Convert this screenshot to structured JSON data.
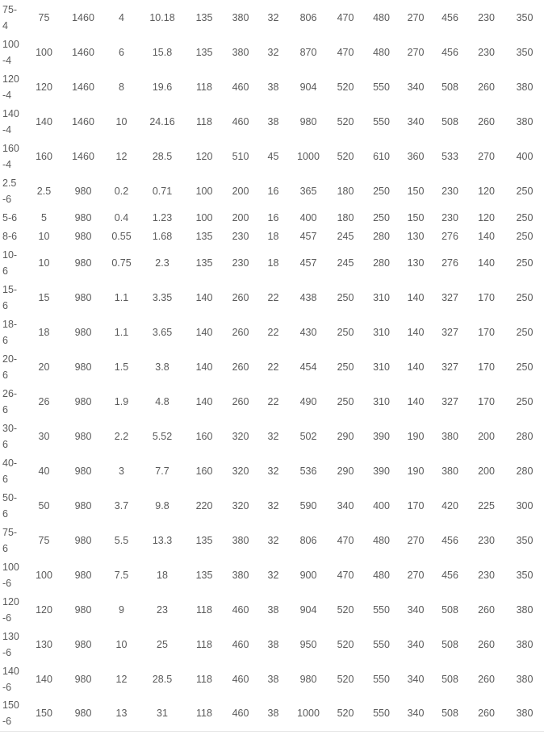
{
  "colors": {
    "text": "#5a5a5a",
    "row_border": "#e6e6e6",
    "background": "#ffffff"
  },
  "table": {
    "rows": [
      {
        "label": "75-\n4",
        "values": [
          "75",
          "1460",
          "4",
          "10.18",
          "135",
          "380",
          "32",
          "806",
          "470",
          "480",
          "270",
          "456",
          "230",
          "350"
        ]
      },
      {
        "label": "100\n-4",
        "values": [
          "100",
          "1460",
          "6",
          "15.8",
          "135",
          "380",
          "32",
          "870",
          "470",
          "480",
          "270",
          "456",
          "230",
          "350"
        ]
      },
      {
        "label": "120\n-4",
        "values": [
          "120",
          "1460",
          "8",
          "19.6",
          "118",
          "460",
          "38",
          "904",
          "520",
          "550",
          "340",
          "508",
          "260",
          "380"
        ]
      },
      {
        "label": "140\n-4",
        "values": [
          "140",
          "1460",
          "10",
          "24.16",
          "118",
          "460",
          "38",
          "980",
          "520",
          "550",
          "340",
          "508",
          "260",
          "380"
        ]
      },
      {
        "label": "160\n-4",
        "values": [
          "160",
          "1460",
          "12",
          "28.5",
          "120",
          "510",
          "45",
          "1000",
          "520",
          "610",
          "360",
          "533",
          "270",
          "400"
        ]
      },
      {
        "label": "2.5\n-6",
        "values": [
          "2.5",
          "980",
          "0.2",
          "0.71",
          "100",
          "200",
          "16",
          "365",
          "180",
          "250",
          "150",
          "230",
          "120",
          "250"
        ]
      },
      {
        "label": "5-6",
        "values": [
          "5",
          "980",
          "0.4",
          "1.23",
          "100",
          "200",
          "16",
          "400",
          "180",
          "250",
          "150",
          "230",
          "120",
          "250"
        ]
      },
      {
        "label": "8-6",
        "values": [
          "10",
          "980",
          "0.55",
          "1.68",
          "135",
          "230",
          "18",
          "457",
          "245",
          "280",
          "130",
          "276",
          "140",
          "250"
        ]
      },
      {
        "label": "10-\n6",
        "values": [
          "10",
          "980",
          "0.75",
          "2.3",
          "135",
          "230",
          "18",
          "457",
          "245",
          "280",
          "130",
          "276",
          "140",
          "250"
        ]
      },
      {
        "label": "15-\n6",
        "values": [
          "15",
          "980",
          "1.1",
          "3.35",
          "140",
          "260",
          "22",
          "438",
          "250",
          "310",
          "140",
          "327",
          "170",
          "250"
        ]
      },
      {
        "label": "18-\n6",
        "values": [
          "18",
          "980",
          "1.1",
          "3.65",
          "140",
          "260",
          "22",
          "430",
          "250",
          "310",
          "140",
          "327",
          "170",
          "250"
        ]
      },
      {
        "label": "20-\n6",
        "values": [
          "20",
          "980",
          "1.5",
          "3.8",
          "140",
          "260",
          "22",
          "454",
          "250",
          "310",
          "140",
          "327",
          "170",
          "250"
        ]
      },
      {
        "label": "26-\n6",
        "values": [
          "26",
          "980",
          "1.9",
          "4.8",
          "140",
          "260",
          "22",
          "490",
          "250",
          "310",
          "140",
          "327",
          "170",
          "250"
        ]
      },
      {
        "label": "30-\n6",
        "values": [
          "30",
          "980",
          "2.2",
          "5.52",
          "160",
          "320",
          "32",
          "502",
          "290",
          "390",
          "190",
          "380",
          "200",
          "280"
        ]
      },
      {
        "label": "40-\n6",
        "values": [
          "40",
          "980",
          "3",
          "7.7",
          "160",
          "320",
          "32",
          "536",
          "290",
          "390",
          "190",
          "380",
          "200",
          "280"
        ]
      },
      {
        "label": "50-\n6",
        "values": [
          "50",
          "980",
          "3.7",
          "9.8",
          "220",
          "320",
          "32",
          "590",
          "340",
          "400",
          "170",
          "420",
          "225",
          "300"
        ]
      },
      {
        "label": "75-\n6",
        "values": [
          "75",
          "980",
          "5.5",
          "13.3",
          "135",
          "380",
          "32",
          "806",
          "470",
          "480",
          "270",
          "456",
          "230",
          "350"
        ]
      },
      {
        "label": "100\n-6",
        "values": [
          "100",
          "980",
          "7.5",
          "18",
          "135",
          "380",
          "32",
          "900",
          "470",
          "480",
          "270",
          "456",
          "230",
          "350"
        ]
      },
      {
        "label": "120\n-6",
        "values": [
          "120",
          "980",
          "9",
          "23",
          "118",
          "460",
          "38",
          "904",
          "520",
          "550",
          "340",
          "508",
          "260",
          "380"
        ]
      },
      {
        "label": "130\n-6",
        "values": [
          "130",
          "980",
          "10",
          "25",
          "118",
          "460",
          "38",
          "950",
          "520",
          "550",
          "340",
          "508",
          "260",
          "380"
        ]
      },
      {
        "label": "140\n-6",
        "values": [
          "140",
          "980",
          "12",
          "28.5",
          "118",
          "460",
          "38",
          "980",
          "520",
          "550",
          "340",
          "508",
          "260",
          "380"
        ]
      },
      {
        "label": "150\n-6",
        "values": [
          "150",
          "980",
          "13",
          "31",
          "118",
          "460",
          "38",
          "1000",
          "520",
          "550",
          "340",
          "508",
          "260",
          "380"
        ]
      }
    ]
  }
}
